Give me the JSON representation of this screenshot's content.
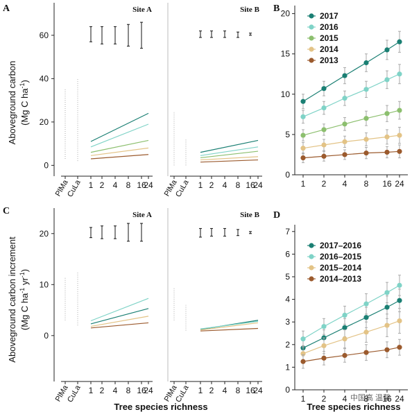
{
  "panel_labels": [
    "A",
    "B",
    "C",
    "D"
  ],
  "x_axis_title": "Tree species richness",
  "watermark": "中国高 温馨",
  "colors": {
    "2017": "#1a7f73",
    "2016": "#7fd3c7",
    "2015": "#8cbf6e",
    "2014": "#e3c386",
    "2013": "#9b5a2d",
    "2017_2016": "#1a7f73",
    "2016_2015": "#7fd3c7",
    "2015_2014": "#e3c386",
    "2014_2013": "#9b5a2d"
  },
  "chart_data": [
    {
      "panel": "A",
      "type": "line",
      "ylabel": "Aboveground carbon (Mg C ha⁻¹)",
      "ylabel_line1": "Aboveground carbon",
      "ylabel_line2": "(Mg C ha",
      "ylabel_sup": "-1",
      "ylabel_end": ")",
      "ylim": [
        -5,
        75
      ],
      "yticks": [
        0,
        20,
        40,
        60
      ],
      "xticks": [
        "1",
        "2",
        "4",
        "8",
        "16",
        "24"
      ],
      "mono_ticks": [
        "PlMa",
        "CuLa"
      ],
      "sites": [
        {
          "name": "Site A",
          "mono_ranges": [
            [
              3,
              35
            ],
            [
              2,
              40
            ]
          ],
          "error_bars": [
            [
              57,
              64
            ],
            [
              56,
              64
            ],
            [
              56,
              64
            ],
            [
              55,
              65
            ],
            [
              54,
              66
            ]
          ],
          "series": [
            {
              "name": "2017",
              "start": 11,
              "end": 24
            },
            {
              "name": "2016",
              "start": 8.5,
              "end": 19
            },
            {
              "name": "2015",
              "start": 6,
              "end": 11.5
            },
            {
              "name": "2014",
              "start": 4.5,
              "end": 8
            },
            {
              "name": "2013",
              "start": 3,
              "end": 5
            }
          ]
        },
        {
          "name": "Site B",
          "mono_ranges": [
            [
              0,
              25
            ],
            [
              0,
              12
            ]
          ],
          "error_bars": [
            [
              59,
              62
            ],
            [
              59,
              62
            ],
            [
              59,
              62
            ],
            [
              59,
              61.5
            ],
            [
              60,
              61
            ]
          ],
          "series": [
            {
              "name": "2017",
              "start": 6,
              "end": 11.5
            },
            {
              "name": "2016",
              "start": 4.5,
              "end": 8.5
            },
            {
              "name": "2015",
              "start": 3.5,
              "end": 6.5
            },
            {
              "name": "2014",
              "start": 2.5,
              "end": 4
            },
            {
              "name": "2013",
              "start": 1.5,
              "end": 2.5
            }
          ]
        }
      ]
    },
    {
      "panel": "B",
      "type": "line",
      "ylim": [
        0,
        21
      ],
      "yticks": [
        0,
        5,
        10,
        15,
        20
      ],
      "x": [
        1,
        2,
        4,
        8,
        16,
        24
      ],
      "xticks": [
        "1",
        "2",
        "4",
        "8",
        "16",
        "24"
      ],
      "series": [
        {
          "name": "2017",
          "values": [
            9.1,
            10.7,
            12.3,
            13.9,
            15.5,
            16.5
          ],
          "err": [
            0.9,
            0.9,
            1.0,
            1.1,
            1.2,
            1.3
          ]
        },
        {
          "name": "2016",
          "values": [
            7.2,
            8.3,
            9.5,
            10.6,
            11.8,
            12.5
          ],
          "err": [
            0.8,
            0.8,
            0.9,
            1.0,
            1.1,
            1.2
          ]
        },
        {
          "name": "2015",
          "values": [
            4.9,
            5.6,
            6.3,
            7.0,
            7.6,
            8.0
          ],
          "err": [
            0.7,
            0.7,
            0.8,
            0.9,
            1.0,
            1.1
          ]
        },
        {
          "name": "2014",
          "values": [
            3.3,
            3.7,
            4.1,
            4.4,
            4.7,
            4.9
          ],
          "err": [
            0.7,
            0.7,
            0.7,
            0.8,
            0.9,
            1.0
          ]
        },
        {
          "name": "2013",
          "values": [
            2.1,
            2.3,
            2.5,
            2.7,
            2.8,
            2.9
          ],
          "err": [
            0.6,
            0.6,
            0.6,
            0.7,
            0.7,
            0.8
          ]
        }
      ]
    },
    {
      "panel": "C",
      "type": "line",
      "ylabel": "Aboveground carbon increment (Mg C ha⁻¹ yr⁻¹)",
      "ylabel_line1": "Aboveground carbon increment",
      "ylabel_line2": "(Mg C ha",
      "ylabel_sup": "-1",
      "ylabel_mid": " yr",
      "ylabel_sup2": "-1",
      "ylabel_end": ")",
      "ylim": [
        -9,
        25
      ],
      "yticks": [
        0,
        10,
        20
      ],
      "xticks": [
        "1",
        "2",
        "4",
        "8",
        "16",
        "24"
      ],
      "mono_ticks": [
        "PlMa",
        "CuLa"
      ],
      "sites": [
        {
          "name": "Site A",
          "mono_ranges": [
            [
              3,
              11.5
            ],
            [
              2,
              12.5
            ]
          ],
          "error_bars": [
            [
              19.2,
              21.2
            ],
            [
              19,
              21.5
            ],
            [
              19,
              21.5
            ],
            [
              18.5,
              22
            ],
            [
              18.5,
              22
            ]
          ],
          "series": [
            {
              "name": "2017–2016",
              "start": 2.3,
              "end": 5.3
            },
            {
              "name": "2016–2015",
              "start": 2.9,
              "end": 7.3
            },
            {
              "name": "2015–2014",
              "start": 1.8,
              "end": 3.8
            },
            {
              "name": "2014–2013",
              "start": 1.5,
              "end": 2.5
            }
          ]
        },
        {
          "name": "Site B",
          "mono_ranges": [
            [
              3,
              9.5
            ],
            [
              1,
              6
            ]
          ],
          "error_bars": [
            [
              19.3,
              21
            ],
            [
              19.5,
              21
            ],
            [
              19.5,
              21
            ],
            [
              19.6,
              20.8
            ],
            [
              20,
              20.4
            ]
          ],
          "series": [
            {
              "name": "2017–2016",
              "start": 1.2,
              "end": 3.0
            },
            {
              "name": "2016–2015",
              "start": 1.3,
              "end": 2.8
            },
            {
              "name": "2015–2014",
              "start": 1.1,
              "end": 2.5
            },
            {
              "name": "2014–2013",
              "start": 0.9,
              "end": 1.4
            }
          ]
        }
      ]
    },
    {
      "panel": "D",
      "type": "line",
      "ylim": [
        0,
        7.3
      ],
      "yticks": [
        0,
        1,
        2,
        3,
        4,
        5,
        6,
        7
      ],
      "x": [
        1,
        2,
        4,
        8,
        16,
        24
      ],
      "xticks": [
        "1",
        "2",
        "4",
        "8",
        "16",
        "24"
      ],
      "series": [
        {
          "name": "2017–2016",
          "values": [
            1.85,
            2.3,
            2.75,
            3.2,
            3.65,
            3.95
          ],
          "err": [
            0.35,
            0.35,
            0.4,
            0.45,
            0.5,
            0.5
          ]
        },
        {
          "name": "2016–2015",
          "values": [
            2.25,
            2.8,
            3.3,
            3.8,
            4.3,
            4.62
          ],
          "err": [
            0.35,
            0.35,
            0.4,
            0.45,
            0.45,
            0.45
          ]
        },
        {
          "name": "2015–2014",
          "values": [
            1.6,
            1.95,
            2.25,
            2.55,
            2.85,
            3.05
          ],
          "err": [
            0.35,
            0.35,
            0.4,
            0.45,
            0.5,
            0.55
          ]
        },
        {
          "name": "2014–2013",
          "values": [
            1.25,
            1.4,
            1.52,
            1.65,
            1.77,
            1.88
          ],
          "err": [
            0.3,
            0.3,
            0.3,
            0.35,
            0.35,
            0.35
          ]
        }
      ]
    }
  ]
}
